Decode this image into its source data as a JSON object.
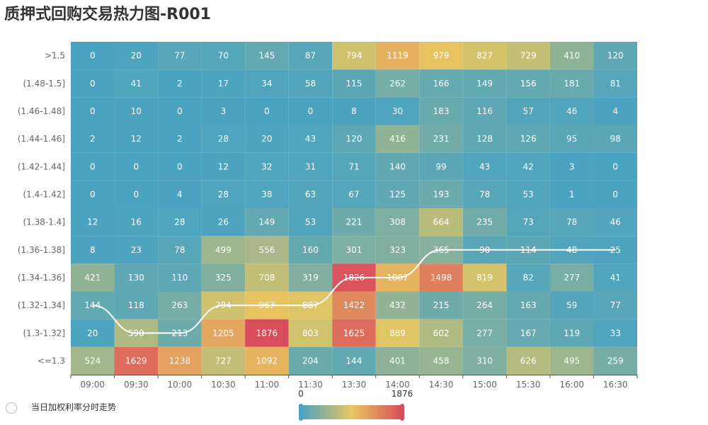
{
  "title": "质押式回购交易热力图-R001",
  "colors": {
    "scale": [
      "#4aa3c1",
      "#e8c760",
      "#d94e5d"
    ],
    "line": "#ffffff",
    "cell_text": "#ffffff",
    "axis_text": "#666666",
    "axis_line": "#555555"
  },
  "watermark": {
    "text": "当日加权利率分时走势",
    "icon": "watermark-logo-icon"
  },
  "chart_data": {
    "type": "heatmap",
    "title": "质押式回购交易热力图-R001",
    "x_categories": [
      "09:00",
      "09:30",
      "10:00",
      "10:30",
      "11:00",
      "11:30",
      "13:30",
      "14:00",
      "14:30",
      "15:00",
      "15:30",
      "16:00",
      "16:30"
    ],
    "y_categories": [
      ">1.5",
      "(1.48-1.5]",
      "(1.46-1.48]",
      "(1.44-1.46]",
      "(1.42-1.44]",
      "(1.4-1.42]",
      "(1.38-1.4]",
      "(1.36-1.38]",
      "(1.34-1.36]",
      "(1.32-1.34]",
      "(1.3-1.32]",
      "<=1.3"
    ],
    "values": [
      [
        0,
        20,
        77,
        70,
        145,
        87,
        794,
        1119,
        979,
        827,
        729,
        410,
        120
      ],
      [
        0,
        41,
        2,
        17,
        34,
        58,
        115,
        262,
        166,
        149,
        156,
        181,
        81
      ],
      [
        0,
        10,
        0,
        3,
        0,
        0,
        8,
        30,
        183,
        116,
        57,
        46,
        4
      ],
      [
        2,
        12,
        2,
        28,
        20,
        43,
        120,
        416,
        231,
        128,
        126,
        95,
        98
      ],
      [
        0,
        0,
        0,
        12,
        32,
        31,
        71,
        140,
        99,
        43,
        42,
        3,
        0
      ],
      [
        0,
        0,
        4,
        28,
        38,
        63,
        67,
        125,
        193,
        78,
        53,
        1,
        0
      ],
      [
        12,
        16,
        28,
        26,
        149,
        53,
        221,
        308,
        664,
        235,
        73,
        78,
        46
      ],
      [
        8,
        23,
        78,
        499,
        556,
        160,
        301,
        323,
        365,
        90,
        114,
        48,
        25
      ],
      [
        421,
        130,
        110,
        325,
        708,
        319,
        1826,
        1087,
        1498,
        819,
        82,
        277,
        41
      ],
      [
        144,
        118,
        263,
        794,
        967,
        887,
        1422,
        432,
        215,
        264,
        163,
        59,
        77
      ],
      [
        20,
        590,
        213,
        1205,
        1876,
        803,
        1625,
        889,
        602,
        277,
        167,
        119,
        33
      ],
      [
        524,
        1629,
        1238,
        727,
        1092,
        204,
        144,
        401,
        458,
        310,
        626,
        495,
        259
      ]
    ],
    "visual_map": {
      "min": 0,
      "max": 1876,
      "min_label": "0",
      "max_label": "1876"
    },
    "line_series": {
      "name": "当日加权利率分时走势",
      "y_index": [
        9.0,
        10.0,
        10.0,
        9.0,
        9.0,
        9.0,
        8.0,
        8.0,
        7.0,
        7.0,
        7.0,
        7.0,
        7.0
      ]
    }
  }
}
